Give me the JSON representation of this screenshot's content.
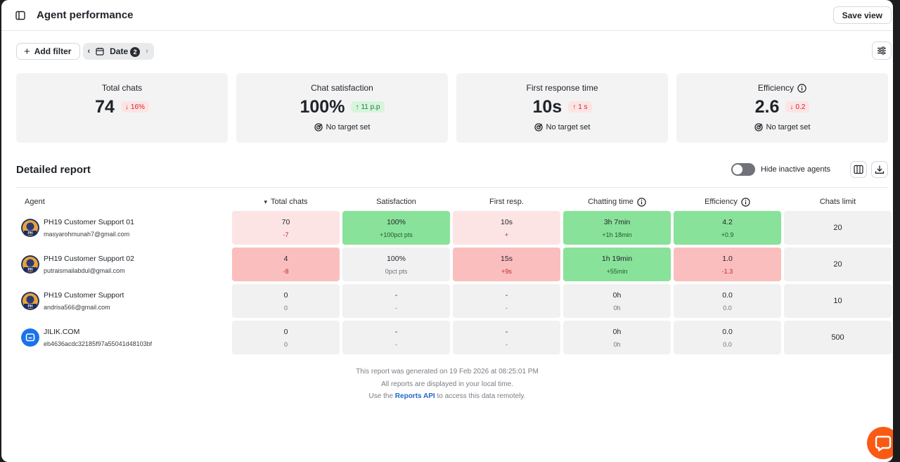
{
  "header": {
    "title": "Agent performance",
    "save_view_label": "Save view"
  },
  "filters": {
    "add_filter_label": "Add filter",
    "date_label": "Date",
    "date_count": "2"
  },
  "summary_cards": [
    {
      "label": "Total chats",
      "value": "74",
      "change": "16%",
      "direction": "down",
      "tone": "red",
      "target": ""
    },
    {
      "label": "Chat satisfaction",
      "value": "100%",
      "change": "11 p.p",
      "direction": "up",
      "tone": "green",
      "target": "No target set"
    },
    {
      "label": "First response time",
      "value": "10s",
      "change": "1 s",
      "direction": "up",
      "tone": "red",
      "target": "No target set"
    },
    {
      "label": "Efficiency",
      "value": "2.6",
      "change": "0.2",
      "direction": "down",
      "tone": "red",
      "target": "No target set",
      "info": true
    }
  ],
  "report": {
    "title": "Detailed report",
    "hide_inactive_label": "Hide inactive agents",
    "hide_inactive_on": false,
    "columns": [
      "Agent",
      "Total chats",
      "Satisfaction",
      "First resp.",
      "Chatting time",
      "Efficiency",
      "Chats limit"
    ],
    "rows": [
      {
        "name": "PH19 Customer Support 01",
        "email": "masyarohmunah7@gmail.com",
        "avatar": "photo",
        "total_chats": {
          "main": "70",
          "sub": "-7",
          "tone": "pink"
        },
        "satisfaction": {
          "main": "100%",
          "sub": "+100pct pts",
          "tone": "green"
        },
        "first_resp": {
          "main": "10s",
          "sub": "+",
          "tone": "pink"
        },
        "chatting_time": {
          "main": "3h 7min",
          "sub": "+1h 18min",
          "tone": "green"
        },
        "efficiency": {
          "main": "4.2",
          "sub": "+0.9",
          "tone": "green"
        },
        "chats_limit": "20"
      },
      {
        "name": "PH19 Customer Support 02",
        "email": "putraismailabdul@gmail.com",
        "avatar": "photo",
        "total_chats": {
          "main": "4",
          "sub": "-8",
          "tone": "red"
        },
        "satisfaction": {
          "main": "100%",
          "sub": "0pct pts",
          "tone": "gray"
        },
        "first_resp": {
          "main": "15s",
          "sub": "+9s",
          "tone": "red"
        },
        "chatting_time": {
          "main": "1h 19min",
          "sub": "+55min",
          "tone": "green"
        },
        "efficiency": {
          "main": "1.0",
          "sub": "-1.3",
          "tone": "red"
        },
        "chats_limit": "20"
      },
      {
        "name": "PH19 Customer Support",
        "email": "andrisa566@gmail.com",
        "avatar": "photo",
        "total_chats": {
          "main": "0",
          "sub": "0",
          "tone": "gray"
        },
        "satisfaction": {
          "main": "-",
          "sub": "-",
          "tone": "gray"
        },
        "first_resp": {
          "main": "-",
          "sub": "-",
          "tone": "gray"
        },
        "chatting_time": {
          "main": "0h",
          "sub": "0h",
          "tone": "gray"
        },
        "efficiency": {
          "main": "0.0",
          "sub": "0.0",
          "tone": "gray"
        },
        "chats_limit": "10"
      },
      {
        "name": "JILIK.COM",
        "email": "eb4636acdc32185f97a55041d48103bf",
        "avatar": "bot",
        "total_chats": {
          "main": "0",
          "sub": "0",
          "tone": "gray"
        },
        "satisfaction": {
          "main": "-",
          "sub": "-",
          "tone": "gray"
        },
        "first_resp": {
          "main": "-",
          "sub": "-",
          "tone": "gray"
        },
        "chatting_time": {
          "main": "0h",
          "sub": "0h",
          "tone": "gray"
        },
        "efficiency": {
          "main": "0.0",
          "sub": "0.0",
          "tone": "gray"
        },
        "chats_limit": "500"
      }
    ]
  },
  "footer": {
    "generated": "This report was generated on 19 Feb 2026 at 08:25:01 PM",
    "local_time": "All reports are displayed in your local time.",
    "api_prefix": "Use the",
    "api_link": "Reports API",
    "api_suffix": "to access this data remotely."
  },
  "colors": {
    "green": "#89e29a",
    "red": "#fbbebe",
    "pink": "#fde4e4",
    "gray": "#f1f1f2",
    "chat_fab": "#fa5a14",
    "link": "#2367c9"
  }
}
